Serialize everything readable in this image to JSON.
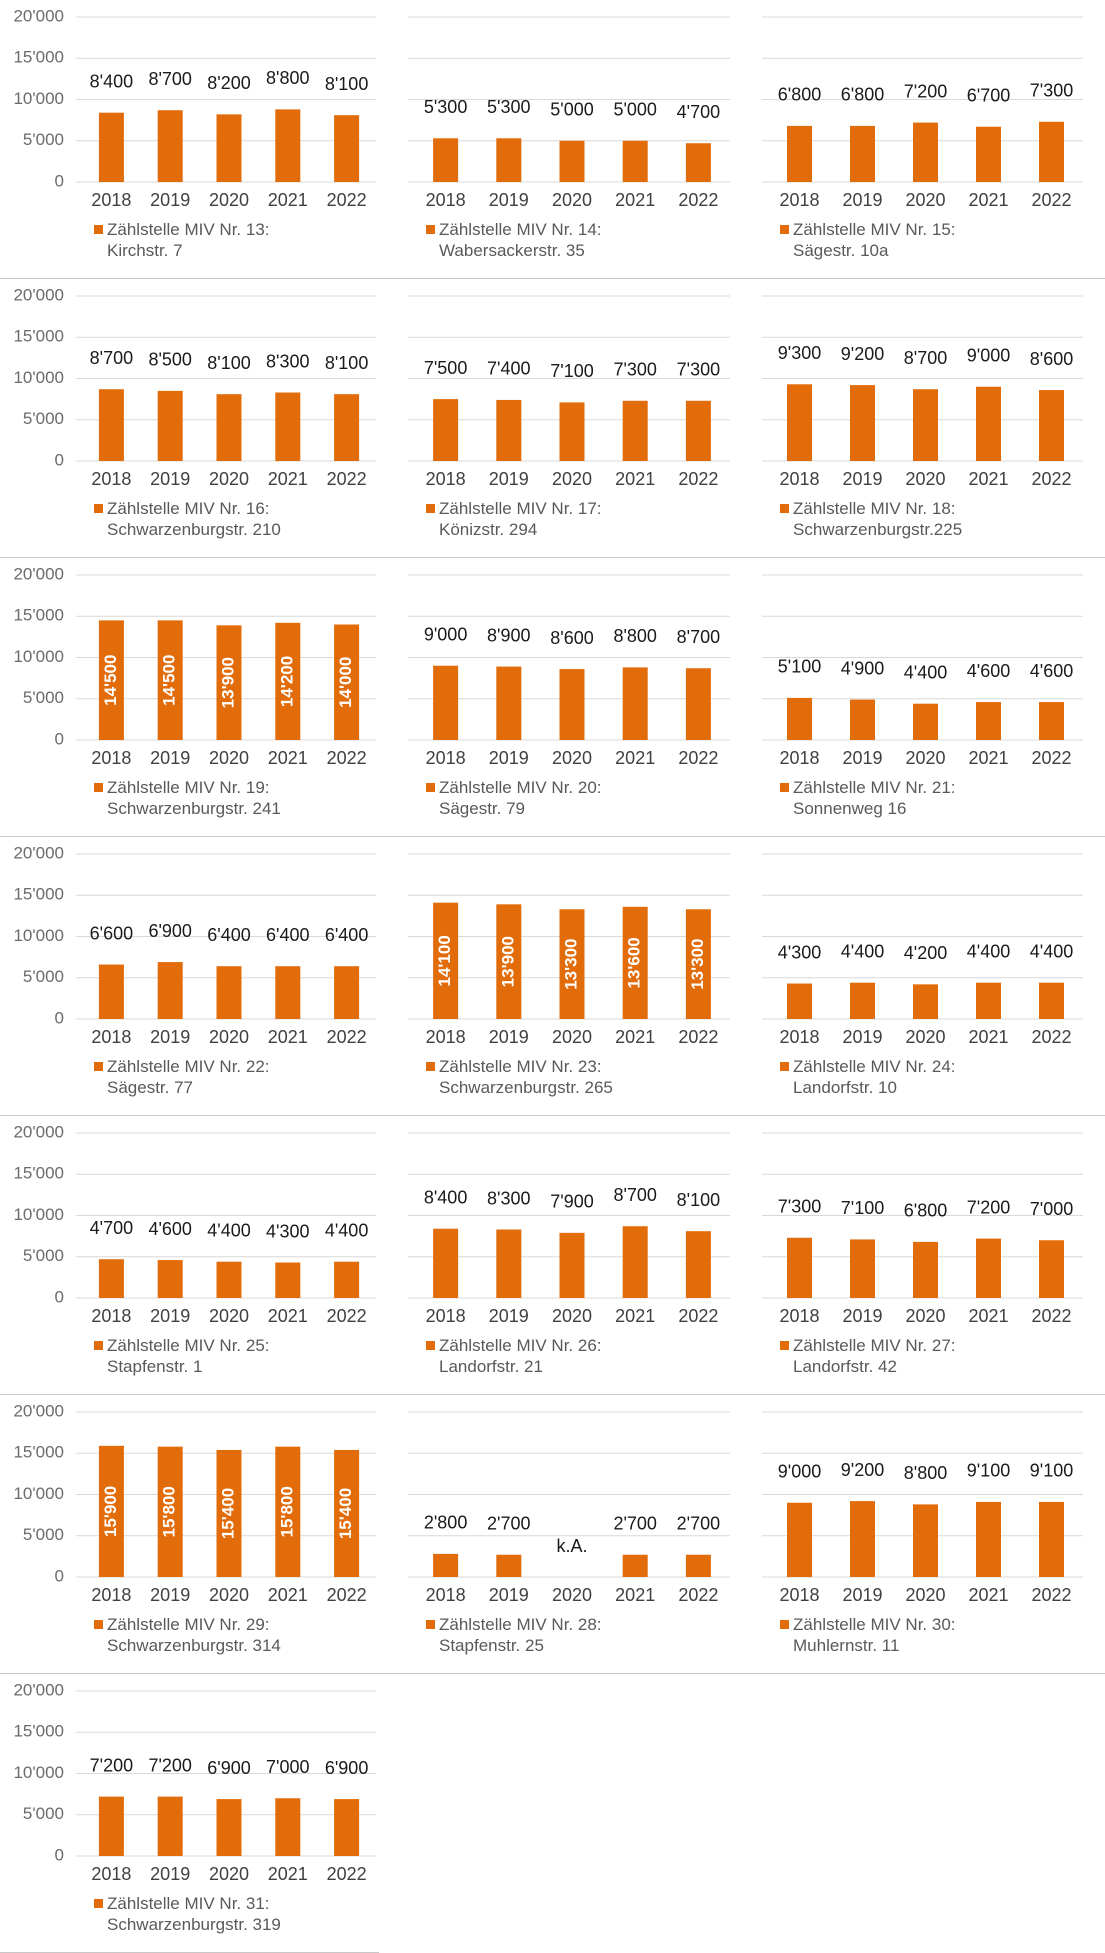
{
  "chart_data": [
    {
      "type": "bar",
      "categories": [
        "2018",
        "2019",
        "2020",
        "2021",
        "2022"
      ],
      "series": [
        {
          "name": "Zählstelle MIV Nr. 13:\nKirchstr. 7",
          "color": "#e36c0a",
          "values": [
            8400,
            8700,
            8200,
            8800,
            8100
          ],
          "value_labels": [
            "8'400",
            "8'700",
            "8'200",
            "8'800",
            "8'100"
          ]
        }
      ],
      "ylim": [
        0,
        20000
      ],
      "yticks": [
        0,
        {
          "value": 5000,
          "label": "5'000"
        },
        {
          "value": 10000,
          "label": "10'000"
        },
        {
          "value": 15000,
          "label": "15'000"
        },
        {
          "value": 20000,
          "label": "20'000"
        }
      ],
      "tick_labels": true,
      "label_position": "above"
    },
    {
      "type": "bar",
      "categories": [
        "2018",
        "2019",
        "2020",
        "2021",
        "2022"
      ],
      "series": [
        {
          "name": "Zählstelle MIV Nr. 14:\nWabersackerstr. 35",
          "color": "#e36c0a",
          "values": [
            5300,
            5300,
            5000,
            5000,
            4700
          ],
          "value_labels": [
            "5'300",
            "5'300",
            "5'000",
            "5'000",
            "4'700"
          ]
        }
      ],
      "ylim": [
        0,
        20000
      ],
      "yticks": [
        0,
        5000,
        10000,
        15000,
        20000
      ],
      "tick_labels": false,
      "label_position": "above"
    },
    {
      "type": "bar",
      "categories": [
        "2018",
        "2019",
        "2020",
        "2021",
        "2022"
      ],
      "series": [
        {
          "name": "Zählstelle MIV Nr. 15:\nSägestr. 10a",
          "color": "#e36c0a",
          "values": [
            6800,
            6800,
            7200,
            6700,
            7300
          ],
          "value_labels": [
            "6'800",
            "6'800",
            "7'200",
            "6'700",
            "7'300"
          ]
        }
      ],
      "ylim": [
        0,
        20000
      ],
      "yticks": [
        0,
        5000,
        10000,
        15000,
        20000
      ],
      "tick_labels": false,
      "label_position": "above"
    },
    {
      "type": "bar",
      "categories": [
        "2018",
        "2019",
        "2020",
        "2021",
        "2022"
      ],
      "series": [
        {
          "name": "Zählstelle MIV Nr. 16:\nSchwarzenburgstr. 210",
          "color": "#e36c0a",
          "values": [
            8700,
            8500,
            8100,
            8300,
            8100
          ],
          "value_labels": [
            "8'700",
            "8'500",
            "8'100",
            "8'300",
            "8'100"
          ]
        }
      ],
      "ylim": [
        0,
        20000
      ],
      "yticks": [
        0,
        {
          "value": 5000,
          "label": "5'000"
        },
        {
          "value": 10000,
          "label": "10'000"
        },
        {
          "value": 15000,
          "label": "15'000"
        },
        {
          "value": 20000,
          "label": "20'000"
        }
      ],
      "tick_labels": true,
      "label_position": "above"
    },
    {
      "type": "bar",
      "categories": [
        "2018",
        "2019",
        "2020",
        "2021",
        "2022"
      ],
      "series": [
        {
          "name": "Zählstelle MIV Nr. 17:\nKönizstr. 294",
          "color": "#e36c0a",
          "values": [
            7500,
            7400,
            7100,
            7300,
            7300
          ],
          "value_labels": [
            "7'500",
            "7'400",
            "7'100",
            "7'300",
            "7'300"
          ]
        }
      ],
      "ylim": [
        0,
        20000
      ],
      "yticks": [
        0,
        5000,
        10000,
        15000,
        20000
      ],
      "tick_labels": false,
      "label_position": "above"
    },
    {
      "type": "bar",
      "categories": [
        "2018",
        "2019",
        "2020",
        "2021",
        "2022"
      ],
      "series": [
        {
          "name": "Zählstelle MIV Nr. 18:\nSchwarzenburgstr.225",
          "color": "#e36c0a",
          "values": [
            9300,
            9200,
            8700,
            9000,
            8600
          ],
          "value_labels": [
            "9'300",
            "9'200",
            "8'700",
            "9'000",
            "8'600"
          ]
        }
      ],
      "ylim": [
        0,
        20000
      ],
      "yticks": [
        0,
        5000,
        10000,
        15000,
        20000
      ],
      "tick_labels": false,
      "label_position": "above"
    },
    {
      "type": "bar",
      "categories": [
        "2018",
        "2019",
        "2020",
        "2021",
        "2022"
      ],
      "series": [
        {
          "name": "Zählstelle MIV Nr. 19:\nSchwarzenburgstr. 241",
          "color": "#e36c0a",
          "values": [
            14500,
            14500,
            13900,
            14200,
            14000
          ],
          "value_labels": [
            "14'500",
            "14'500",
            "13'900",
            "14'200",
            "14'000"
          ]
        }
      ],
      "ylim": [
        0,
        20000
      ],
      "yticks": [
        0,
        {
          "value": 5000,
          "label": "5'000"
        },
        {
          "value": 10000,
          "label": "10'000"
        },
        {
          "value": 15000,
          "label": "15'000"
        },
        {
          "value": 20000,
          "label": "20'000"
        }
      ],
      "tick_labels": true,
      "label_position": "inside"
    },
    {
      "type": "bar",
      "categories": [
        "2018",
        "2019",
        "2020",
        "2021",
        "2022"
      ],
      "series": [
        {
          "name": "Zählstelle MIV Nr. 20:\nSägestr. 79",
          "color": "#e36c0a",
          "values": [
            9000,
            8900,
            8600,
            8800,
            8700
          ],
          "value_labels": [
            "9'000",
            "8'900",
            "8'600",
            "8'800",
            "8'700"
          ]
        }
      ],
      "ylim": [
        0,
        20000
      ],
      "yticks": [
        0,
        5000,
        10000,
        15000,
        20000
      ],
      "tick_labels": false,
      "label_position": "above"
    },
    {
      "type": "bar",
      "categories": [
        "2018",
        "2019",
        "2020",
        "2021",
        "2022"
      ],
      "series": [
        {
          "name": "Zählstelle MIV Nr. 21:\nSonnenweg 16",
          "color": "#e36c0a",
          "values": [
            5100,
            4900,
            4400,
            4600,
            4600
          ],
          "value_labels": [
            "5'100",
            "4'900",
            "4'400",
            "4'600",
            "4'600"
          ]
        }
      ],
      "ylim": [
        0,
        20000
      ],
      "yticks": [
        0,
        5000,
        10000,
        15000,
        20000
      ],
      "tick_labels": false,
      "label_position": "above"
    },
    {
      "type": "bar",
      "categories": [
        "2018",
        "2019",
        "2020",
        "2021",
        "2022"
      ],
      "series": [
        {
          "name": "Zählstelle MIV Nr. 22:\nSägestr. 77",
          "color": "#e36c0a",
          "values": [
            6600,
            6900,
            6400,
            6400,
            6400
          ],
          "value_labels": [
            "6'600",
            "6'900",
            "6'400",
            "6'400",
            "6'400"
          ]
        }
      ],
      "ylim": [
        0,
        20000
      ],
      "yticks": [
        0,
        {
          "value": 5000,
          "label": "5'000"
        },
        {
          "value": 10000,
          "label": "10'000"
        },
        {
          "value": 15000,
          "label": "15'000"
        },
        {
          "value": 20000,
          "label": "20'000"
        }
      ],
      "tick_labels": true,
      "label_position": "above"
    },
    {
      "type": "bar",
      "categories": [
        "2018",
        "2019",
        "2020",
        "2021",
        "2022"
      ],
      "series": [
        {
          "name": "Zählstelle MIV Nr. 23:\nSchwarzenburgstr. 265",
          "color": "#e36c0a",
          "values": [
            14100,
            13900,
            13300,
            13600,
            13300
          ],
          "value_labels": [
            "14'100",
            "13'900",
            "13'300",
            "13'600",
            "13'300"
          ]
        }
      ],
      "ylim": [
        0,
        20000
      ],
      "yticks": [
        0,
        5000,
        10000,
        15000,
        20000
      ],
      "tick_labels": false,
      "label_position": "inside"
    },
    {
      "type": "bar",
      "categories": [
        "2018",
        "2019",
        "2020",
        "2021",
        "2022"
      ],
      "series": [
        {
          "name": "Zählstelle MIV Nr. 24:\nLandorfstr. 10",
          "color": "#e36c0a",
          "values": [
            4300,
            4400,
            4200,
            4400,
            4400
          ],
          "value_labels": [
            "4'300",
            "4'400",
            "4'200",
            "4'400",
            "4'400"
          ]
        }
      ],
      "ylim": [
        0,
        20000
      ],
      "yticks": [
        0,
        5000,
        10000,
        15000,
        20000
      ],
      "tick_labels": false,
      "label_position": "above"
    },
    {
      "type": "bar",
      "categories": [
        "2018",
        "2019",
        "2020",
        "2021",
        "2022"
      ],
      "series": [
        {
          "name": "Zählstelle MIV Nr. 25:\nStapfenstr. 1",
          "color": "#e36c0a",
          "values": [
            4700,
            4600,
            4400,
            4300,
            4400
          ],
          "value_labels": [
            "4'700",
            "4'600",
            "4'400",
            "4'300",
            "4'400"
          ]
        }
      ],
      "ylim": [
        0,
        20000
      ],
      "yticks": [
        0,
        {
          "value": 5000,
          "label": "5'000"
        },
        {
          "value": 10000,
          "label": "10'000"
        },
        {
          "value": 15000,
          "label": "15'000"
        },
        {
          "value": 20000,
          "label": "20'000"
        }
      ],
      "tick_labels": true,
      "label_position": "above"
    },
    {
      "type": "bar",
      "categories": [
        "2018",
        "2019",
        "2020",
        "2021",
        "2022"
      ],
      "series": [
        {
          "name": "Zählstelle MIV Nr. 26:\nLandorfstr. 21",
          "color": "#e36c0a",
          "values": [
            8400,
            8300,
            7900,
            8700,
            8100
          ],
          "value_labels": [
            "8'400",
            "8'300",
            "7'900",
            "8'700",
            "8'100"
          ]
        }
      ],
      "ylim": [
        0,
        20000
      ],
      "yticks": [
        0,
        5000,
        10000,
        15000,
        20000
      ],
      "tick_labels": false,
      "label_position": "above"
    },
    {
      "type": "bar",
      "categories": [
        "2018",
        "2019",
        "2020",
        "2021",
        "2022"
      ],
      "series": [
        {
          "name": "Zählstelle MIV Nr. 27:\nLandorfstr. 42",
          "color": "#e36c0a",
          "values": [
            7300,
            7100,
            6800,
            7200,
            7000
          ],
          "value_labels": [
            "7'300",
            "7'100",
            "6'800",
            "7'200",
            "7'000"
          ]
        }
      ],
      "ylim": [
        0,
        20000
      ],
      "yticks": [
        0,
        5000,
        10000,
        15000,
        20000
      ],
      "tick_labels": false,
      "label_position": "above"
    },
    {
      "type": "bar",
      "categories": [
        "2018",
        "2019",
        "2020",
        "2021",
        "2022"
      ],
      "series": [
        {
          "name": "Zählstelle MIV Nr. 29:\nSchwarzenburgstr. 314",
          "color": "#e36c0a",
          "values": [
            15900,
            15800,
            15400,
            15800,
            15400
          ],
          "value_labels": [
            "15'900",
            "15'800",
            "15'400",
            "15'800",
            "15'400"
          ]
        }
      ],
      "ylim": [
        0,
        20000
      ],
      "yticks": [
        0,
        {
          "value": 5000,
          "label": "5'000"
        },
        {
          "value": 10000,
          "label": "10'000"
        },
        {
          "value": 15000,
          "label": "15'000"
        },
        {
          "value": 20000,
          "label": "20'000"
        }
      ],
      "tick_labels": true,
      "label_position": "inside"
    },
    {
      "type": "bar",
      "categories": [
        "2018",
        "2019",
        "2020",
        "2021",
        "2022"
      ],
      "series": [
        {
          "name": "Zählstelle MIV Nr. 28:\nStapfenstr. 25",
          "color": "#e36c0a",
          "values": [
            2800,
            2700,
            null,
            2700,
            2700
          ],
          "value_labels": [
            "2'800",
            "2'700",
            "k.A.",
            "2'700",
            "2'700"
          ]
        }
      ],
      "ylim": [
        0,
        20000
      ],
      "yticks": [
        0,
        5000,
        10000,
        15000,
        20000
      ],
      "tick_labels": false,
      "label_position": "above"
    },
    {
      "type": "bar",
      "categories": [
        "2018",
        "2019",
        "2020",
        "2021",
        "2022"
      ],
      "series": [
        {
          "name": "Zählstelle MIV Nr. 30:\nMuhlernstr. 11",
          "color": "#e36c0a",
          "values": [
            9000,
            9200,
            8800,
            9100,
            9100
          ],
          "value_labels": [
            "9'000",
            "9'200",
            "8'800",
            "9'100",
            "9'100"
          ]
        }
      ],
      "ylim": [
        0,
        20000
      ],
      "yticks": [
        0,
        5000,
        10000,
        15000,
        20000
      ],
      "tick_labels": false,
      "label_position": "above"
    },
    {
      "type": "bar",
      "categories": [
        "2018",
        "2019",
        "2020",
        "2021",
        "2022"
      ],
      "series": [
        {
          "name": "Zählstelle MIV Nr. 31:\nSchwarzenburgstr. 319",
          "color": "#e36c0a",
          "values": [
            7200,
            7200,
            6900,
            7000,
            6900
          ],
          "value_labels": [
            "7'200",
            "7'200",
            "6'900",
            "7'000",
            "6'900"
          ]
        }
      ],
      "ylim": [
        0,
        20000
      ],
      "yticks": [
        0,
        {
          "value": 5000,
          "label": "5'000"
        },
        {
          "value": 10000,
          "label": "10'000"
        },
        {
          "value": 15000,
          "label": "15'000"
        },
        {
          "value": 20000,
          "label": "20'000"
        }
      ],
      "tick_labels": true,
      "label_position": "above"
    }
  ]
}
